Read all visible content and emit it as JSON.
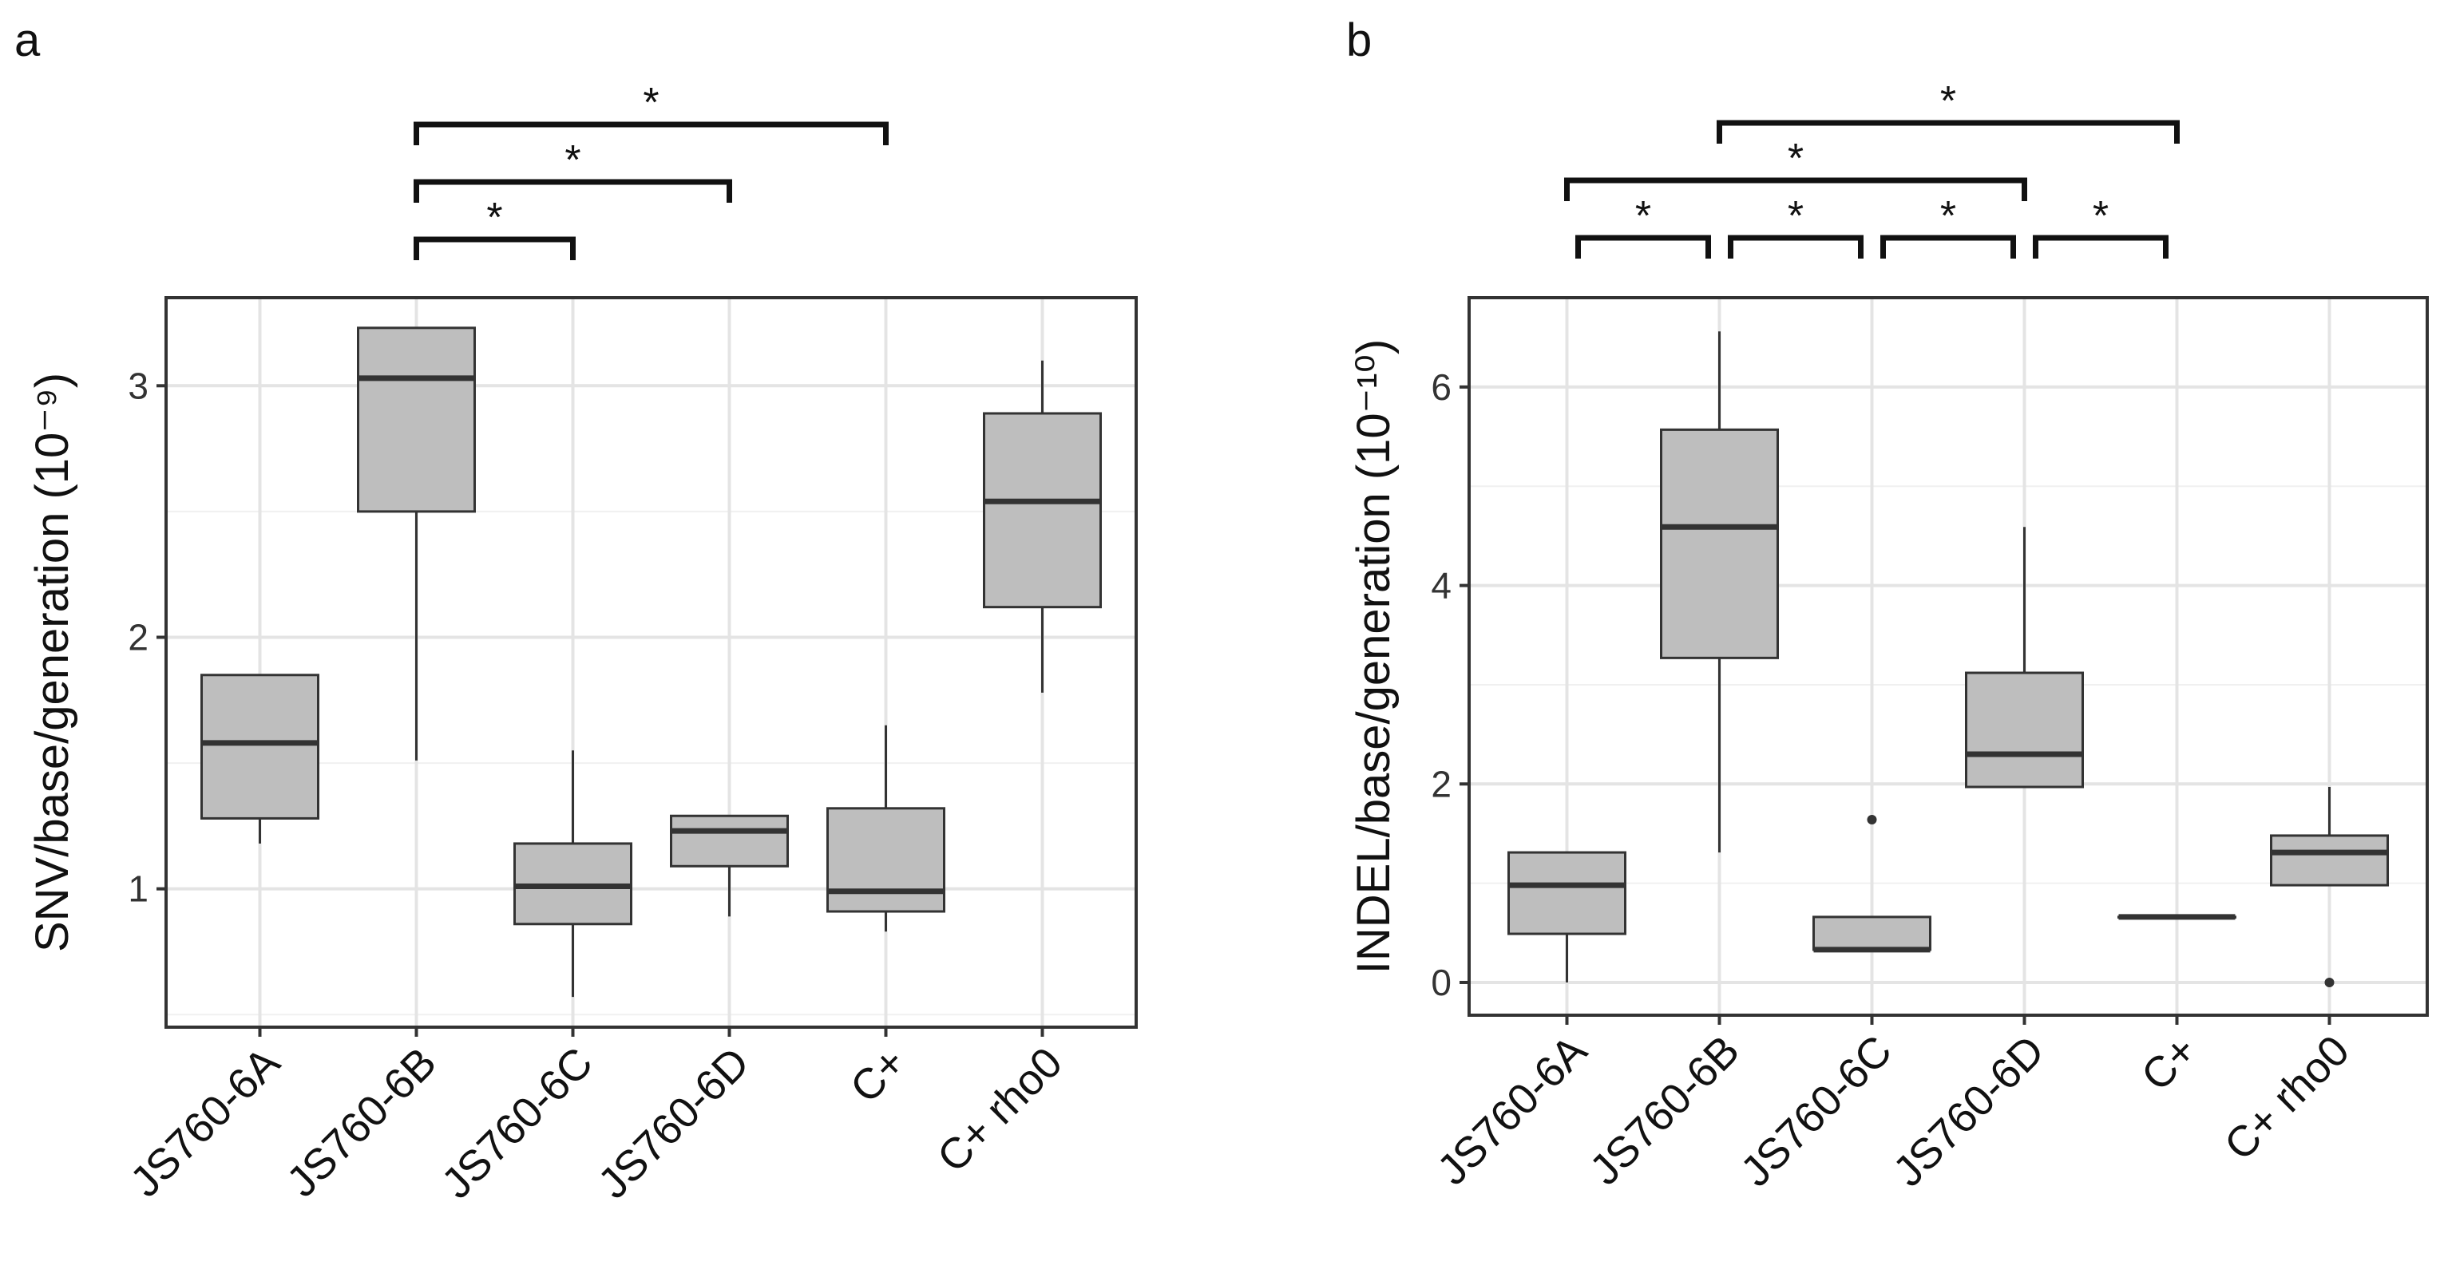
{
  "chart_data": [
    {
      "panel": "a",
      "type": "box",
      "ylabel": "SNV/base/generation (10⁻⁹)",
      "ylim": [
        0.45,
        3.35
      ],
      "yticks": [
        1,
        2,
        3
      ],
      "categories": [
        "JS760-6A",
        "JS760-6B",
        "JS760-6C",
        "JS760-6D",
        "C+",
        "C+ rho0"
      ],
      "boxes": [
        {
          "whislo": 1.18,
          "q1": 1.28,
          "med": 1.58,
          "q3": 1.85,
          "whishi": 1.85,
          "outliers": []
        },
        {
          "whislo": 1.51,
          "q1": 2.5,
          "med": 3.03,
          "q3": 3.23,
          "whishi": 3.23,
          "outliers": []
        },
        {
          "whislo": 0.57,
          "q1": 0.86,
          "med": 1.01,
          "q3": 1.18,
          "whishi": 1.55,
          "outliers": []
        },
        {
          "whislo": 0.89,
          "q1": 1.09,
          "med": 1.23,
          "q3": 1.29,
          "whishi": 1.29,
          "outliers": []
        },
        {
          "whislo": 0.83,
          "q1": 0.91,
          "med": 0.99,
          "q3": 1.32,
          "whishi": 1.65,
          "outliers": []
        },
        {
          "whislo": 1.78,
          "q1": 2.12,
          "med": 2.54,
          "q3": 2.89,
          "whishi": 3.1,
          "outliers": []
        }
      ],
      "significance": [
        {
          "from": 1,
          "to": 2,
          "level": 0,
          "label": "*"
        },
        {
          "from": 1,
          "to": 3,
          "level": 1,
          "label": "*"
        },
        {
          "from": 1,
          "to": 4,
          "level": 2,
          "label": "*"
        }
      ]
    },
    {
      "panel": "b",
      "type": "box",
      "ylabel": "INDEL/base/generation (10⁻¹⁰)",
      "ylim": [
        -0.33,
        6.9
      ],
      "yticks": [
        0,
        2,
        4,
        6
      ],
      "categories": [
        "JS760-6A",
        "JS760-6B",
        "JS760-6C",
        "JS760-6D",
        "C+",
        "C+ rho0"
      ],
      "boxes": [
        {
          "whislo": 0.0,
          "q1": 0.49,
          "med": 0.98,
          "q3": 1.31,
          "whishi": 1.31,
          "outliers": []
        },
        {
          "whislo": 1.31,
          "q1": 3.27,
          "med": 4.59,
          "q3": 5.57,
          "whishi": 6.56,
          "outliers": []
        },
        {
          "whislo": 0.33,
          "q1": 0.33,
          "med": 0.33,
          "q3": 0.66,
          "whishi": 0.66,
          "outliers": [
            1.64
          ]
        },
        {
          "whislo": 1.97,
          "q1": 1.97,
          "med": 2.3,
          "q3": 3.12,
          "whishi": 4.59,
          "outliers": []
        },
        {
          "whislo": 0.66,
          "q1": 0.66,
          "med": 0.66,
          "q3": 0.66,
          "whishi": 0.66,
          "outliers": []
        },
        {
          "whislo": 0.98,
          "q1": 0.98,
          "med": 1.31,
          "q3": 1.48,
          "whishi": 1.97,
          "outliers": [
            0.0
          ]
        }
      ],
      "significance": [
        {
          "from": 0,
          "to": 1,
          "level": 0,
          "label": "*"
        },
        {
          "from": 1,
          "to": 2,
          "level": 0,
          "label": "*"
        },
        {
          "from": 2,
          "to": 3,
          "level": 0,
          "label": "*"
        },
        {
          "from": 3,
          "to": 4,
          "level": 0,
          "label": "*"
        },
        {
          "from": 0,
          "to": 3,
          "level": 1,
          "label": "*"
        },
        {
          "from": 1,
          "to": 4,
          "level": 2,
          "label": "*"
        }
      ]
    }
  ]
}
